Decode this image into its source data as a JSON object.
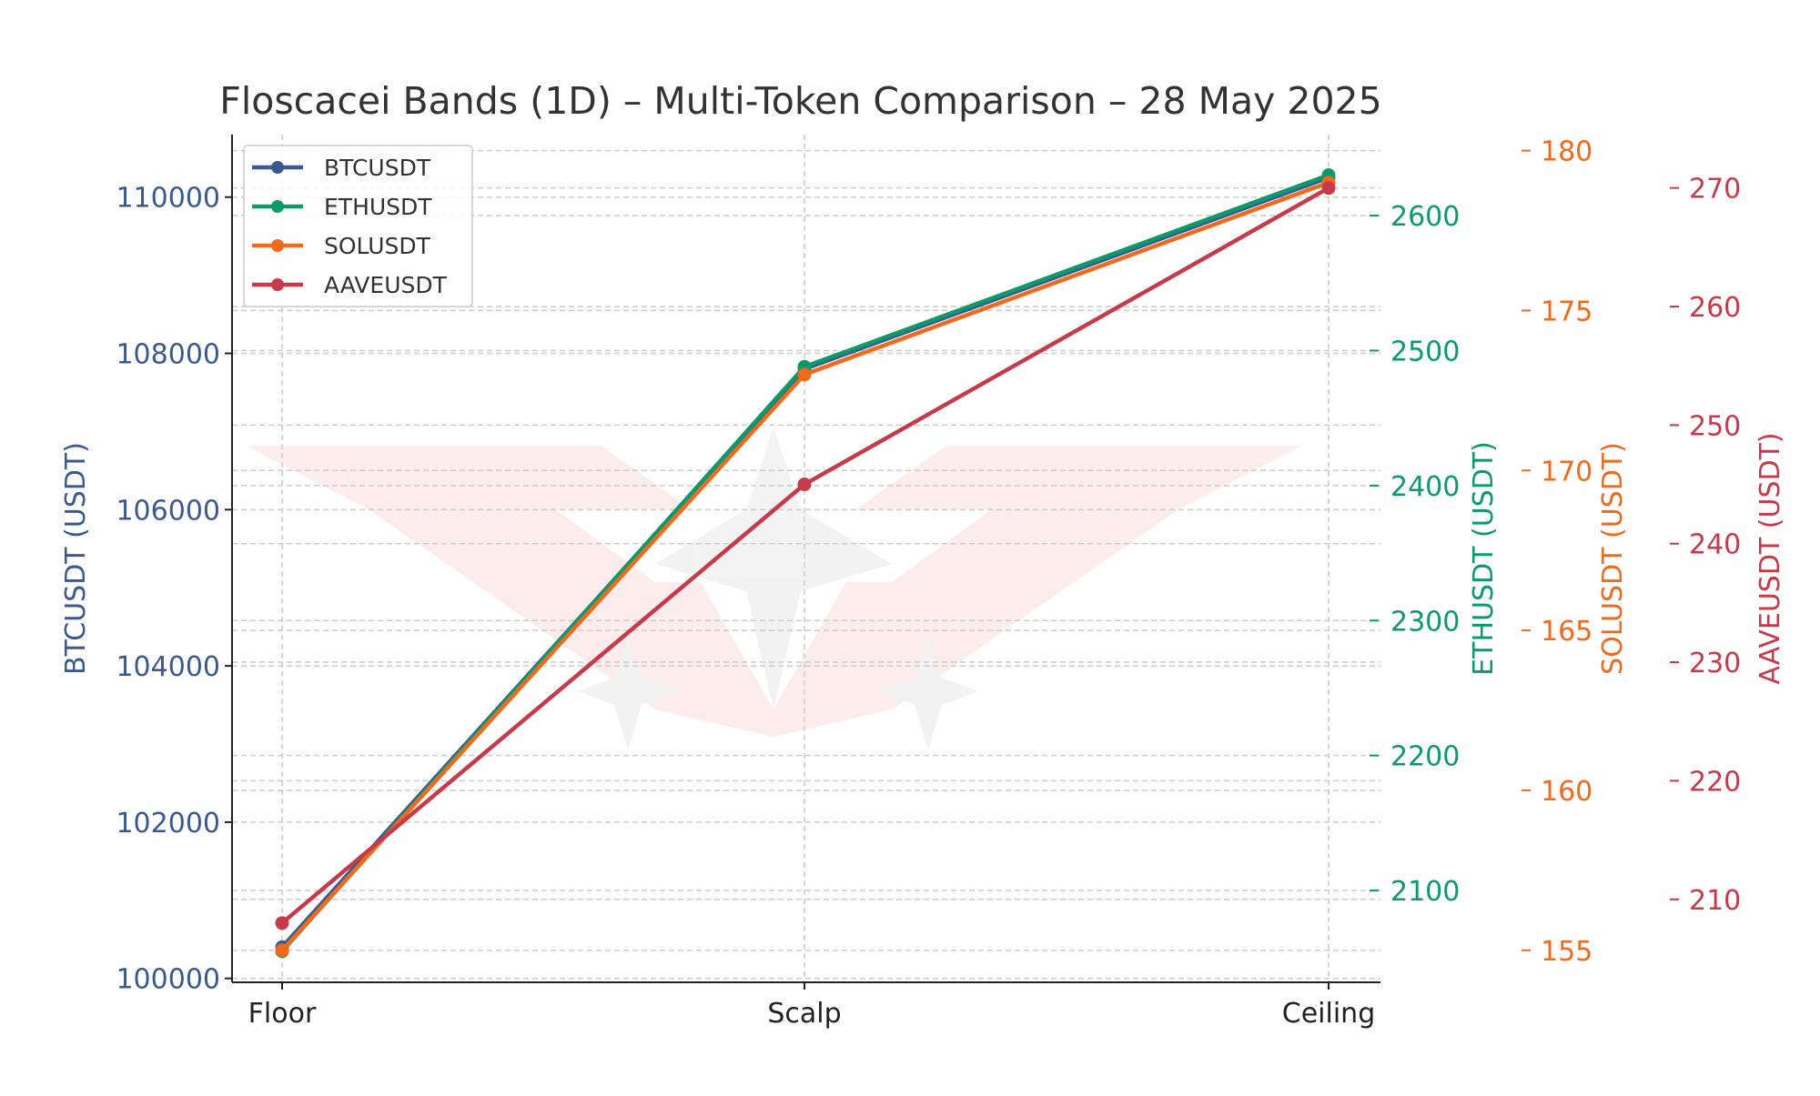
{
  "chart_data": {
    "type": "line",
    "title": "Floscacei Bands (1D) – Multi-Token Comparison – 28 May 2025",
    "categories": [
      "Floor",
      "Scalp",
      "Ceiling"
    ],
    "grid": true,
    "legend_position": "top-left",
    "series": [
      {
        "name": "BTCUSDT",
        "color": "#3a5a8f",
        "axis": "BTCUSDT (USDT)",
        "values": [
          100400,
          107800,
          110250
        ],
        "ylim": [
          99950,
          110800
        ],
        "ticks": [
          100000,
          102000,
          104000,
          106000,
          108000,
          110000
        ],
        "axis_side": "left"
      },
      {
        "name": "ETHUSDT",
        "color": "#0c9a6a",
        "axis": "ETHUSDT (USDT)",
        "values": [
          2055,
          2488,
          2630
        ],
        "ylim": [
          2032,
          2660
        ],
        "ticks": [
          2100,
          2200,
          2300,
          2400,
          2500,
          2600
        ],
        "axis_side": "right"
      },
      {
        "name": "SOLUSDT",
        "color": "#f06a1d",
        "axis": "SOLUSDT (USDT)",
        "values": [
          155.0,
          173.0,
          179.0
        ],
        "ylim": [
          154.0,
          180.5
        ],
        "ticks": [
          155,
          160,
          165,
          170,
          175,
          180
        ],
        "axis_side": "right"
      },
      {
        "name": "AAVEUSDT",
        "color": "#c73a4a",
        "axis": "AAVEUSDT (USDT)",
        "values": [
          208.0,
          245.0,
          270.0
        ],
        "ylim": [
          203.0,
          274.5
        ],
        "ticks": [
          210,
          220,
          230,
          240,
          250,
          260,
          270
        ],
        "axis_side": "right"
      }
    ]
  }
}
